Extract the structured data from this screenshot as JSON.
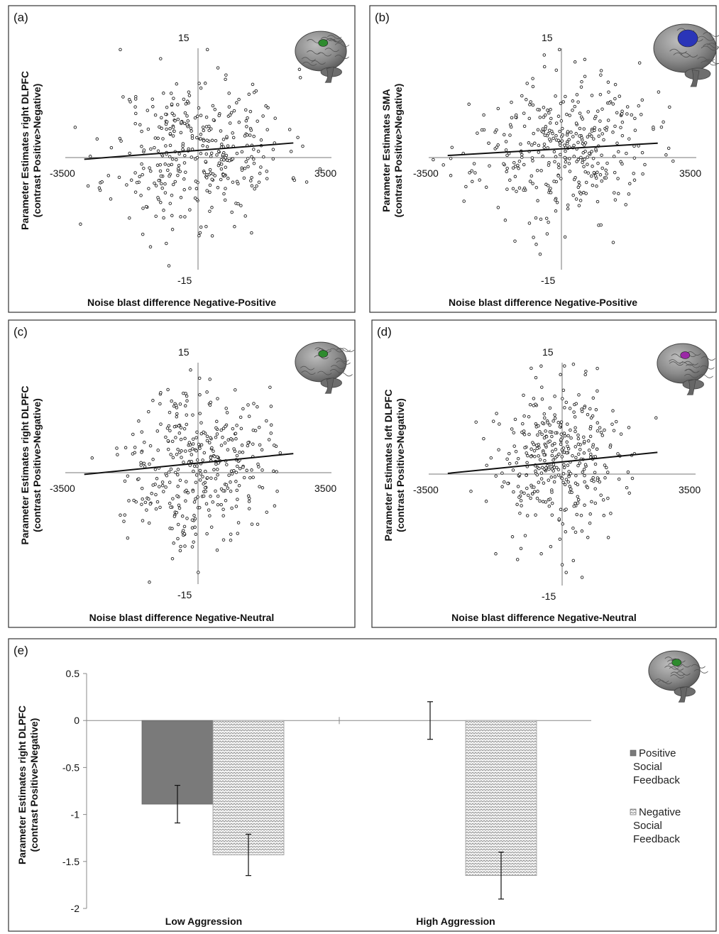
{
  "figure": {
    "panels": [
      "(a)",
      "(b)",
      "(c)",
      "(d)",
      "(e)"
    ]
  },
  "chart_data": [
    {
      "panel": "(a)",
      "type": "scatter",
      "xlabel": "Noise blast difference Negative-Positive",
      "ylabel": "Parameter Estimates right DLPFC",
      "ylabel2": "(contrast Positive>Negative)",
      "xlim": [
        -3500,
        3500
      ],
      "ylim": [
        -15,
        15
      ],
      "x_ticks": [
        "-3500",
        "3500"
      ],
      "y_ticks": [
        "15",
        "-15"
      ],
      "regression": {
        "intercept": 0.9,
        "slope": 0.00037
      },
      "brain_region_color": "#2e8b2e",
      "scatter": {
        "seed": 11,
        "n": 380,
        "sx": 1150,
        "sy": 4.6,
        "cx": 0,
        "cy": 0.9
      }
    },
    {
      "panel": "(b)",
      "type": "scatter",
      "xlabel": "Noise blast difference Negative-Positive",
      "ylabel": "Parameter Estimates SMA",
      "ylabel2": "(contrast Positive>Negative)",
      "xlim": [
        -3500,
        3500
      ],
      "ylim": [
        -15,
        15
      ],
      "x_ticks": [
        "-3500",
        "3500"
      ],
      "y_ticks": [
        "15",
        "-15"
      ],
      "regression": {
        "intercept": 1.1,
        "slope": 0.00028
      },
      "brain_region_color": "#2a35b8",
      "scatter": {
        "seed": 23,
        "n": 380,
        "sx": 1150,
        "sy": 4.3,
        "cx": 0,
        "cy": 1.1
      }
    },
    {
      "panel": "(c)",
      "type": "scatter",
      "xlabel": "Noise blast difference Negative-Neutral",
      "ylabel": "Parameter Estimates right DLPFC",
      "ylabel2": "(contrast Positive>Negative)",
      "xlim": [
        -3500,
        3500
      ],
      "ylim": [
        -15,
        15
      ],
      "x_ticks": [
        "-3500",
        "3500"
      ],
      "y_ticks": [
        "15",
        "-15"
      ],
      "regression": {
        "intercept": 1.2,
        "slope": 0.00047
      },
      "brain_region_color": "#2e8b2e",
      "scatter": {
        "seed": 37,
        "n": 380,
        "sx": 900,
        "sy": 4.8,
        "cx": 0,
        "cy": 1.2
      }
    },
    {
      "panel": "(d)",
      "type": "scatter",
      "xlabel": "Noise blast difference Negative-Neutral",
      "ylabel": "Parameter Estimates left DLPFC",
      "ylabel2": "(contrast Positive>Negative)",
      "xlim": [
        -3500,
        3500
      ],
      "ylim": [
        -15,
        15
      ],
      "x_ticks": [
        "-3500",
        "3500"
      ],
      "y_ticks": [
        "15",
        "-15"
      ],
      "regression": {
        "intercept": 1.5,
        "slope": 0.00047
      },
      "brain_region_color": "#9b2aa6",
      "scatter": {
        "seed": 53,
        "n": 380,
        "sx": 900,
        "sy": 4.8,
        "cx": 0,
        "cy": 1.5
      }
    },
    {
      "panel": "(e)",
      "type": "bar",
      "categories": [
        "Low Aggression",
        "High Aggression"
      ],
      "series": [
        {
          "name": "Positive Social Feedback",
          "values": [
            -0.89,
            0.0
          ],
          "errors": [
            0.2,
            0.2
          ],
          "color": "#7a7a7a"
        },
        {
          "name": "Negative Social Feedback",
          "values": [
            -1.43,
            -1.65
          ],
          "errors": [
            0.22,
            0.25
          ],
          "color": "#e8e8e8"
        }
      ],
      "ylabel": "Parameter Estimates right DLPFC",
      "ylabel2": "(contrast Positive>Negative)",
      "ylim": [
        -2,
        0.5
      ],
      "y_ticks": [
        "0.5",
        "0",
        "-0.5",
        "-1",
        "-1.5",
        "-2"
      ],
      "legend": [
        {
          "lines": [
            "Positive",
            "Social",
            "Feedback"
          ]
        },
        {
          "lines": [
            "Negative",
            "Social",
            "Feedback"
          ]
        }
      ],
      "legend_position": "right",
      "brain_region_color": "#2e8b2e"
    }
  ]
}
